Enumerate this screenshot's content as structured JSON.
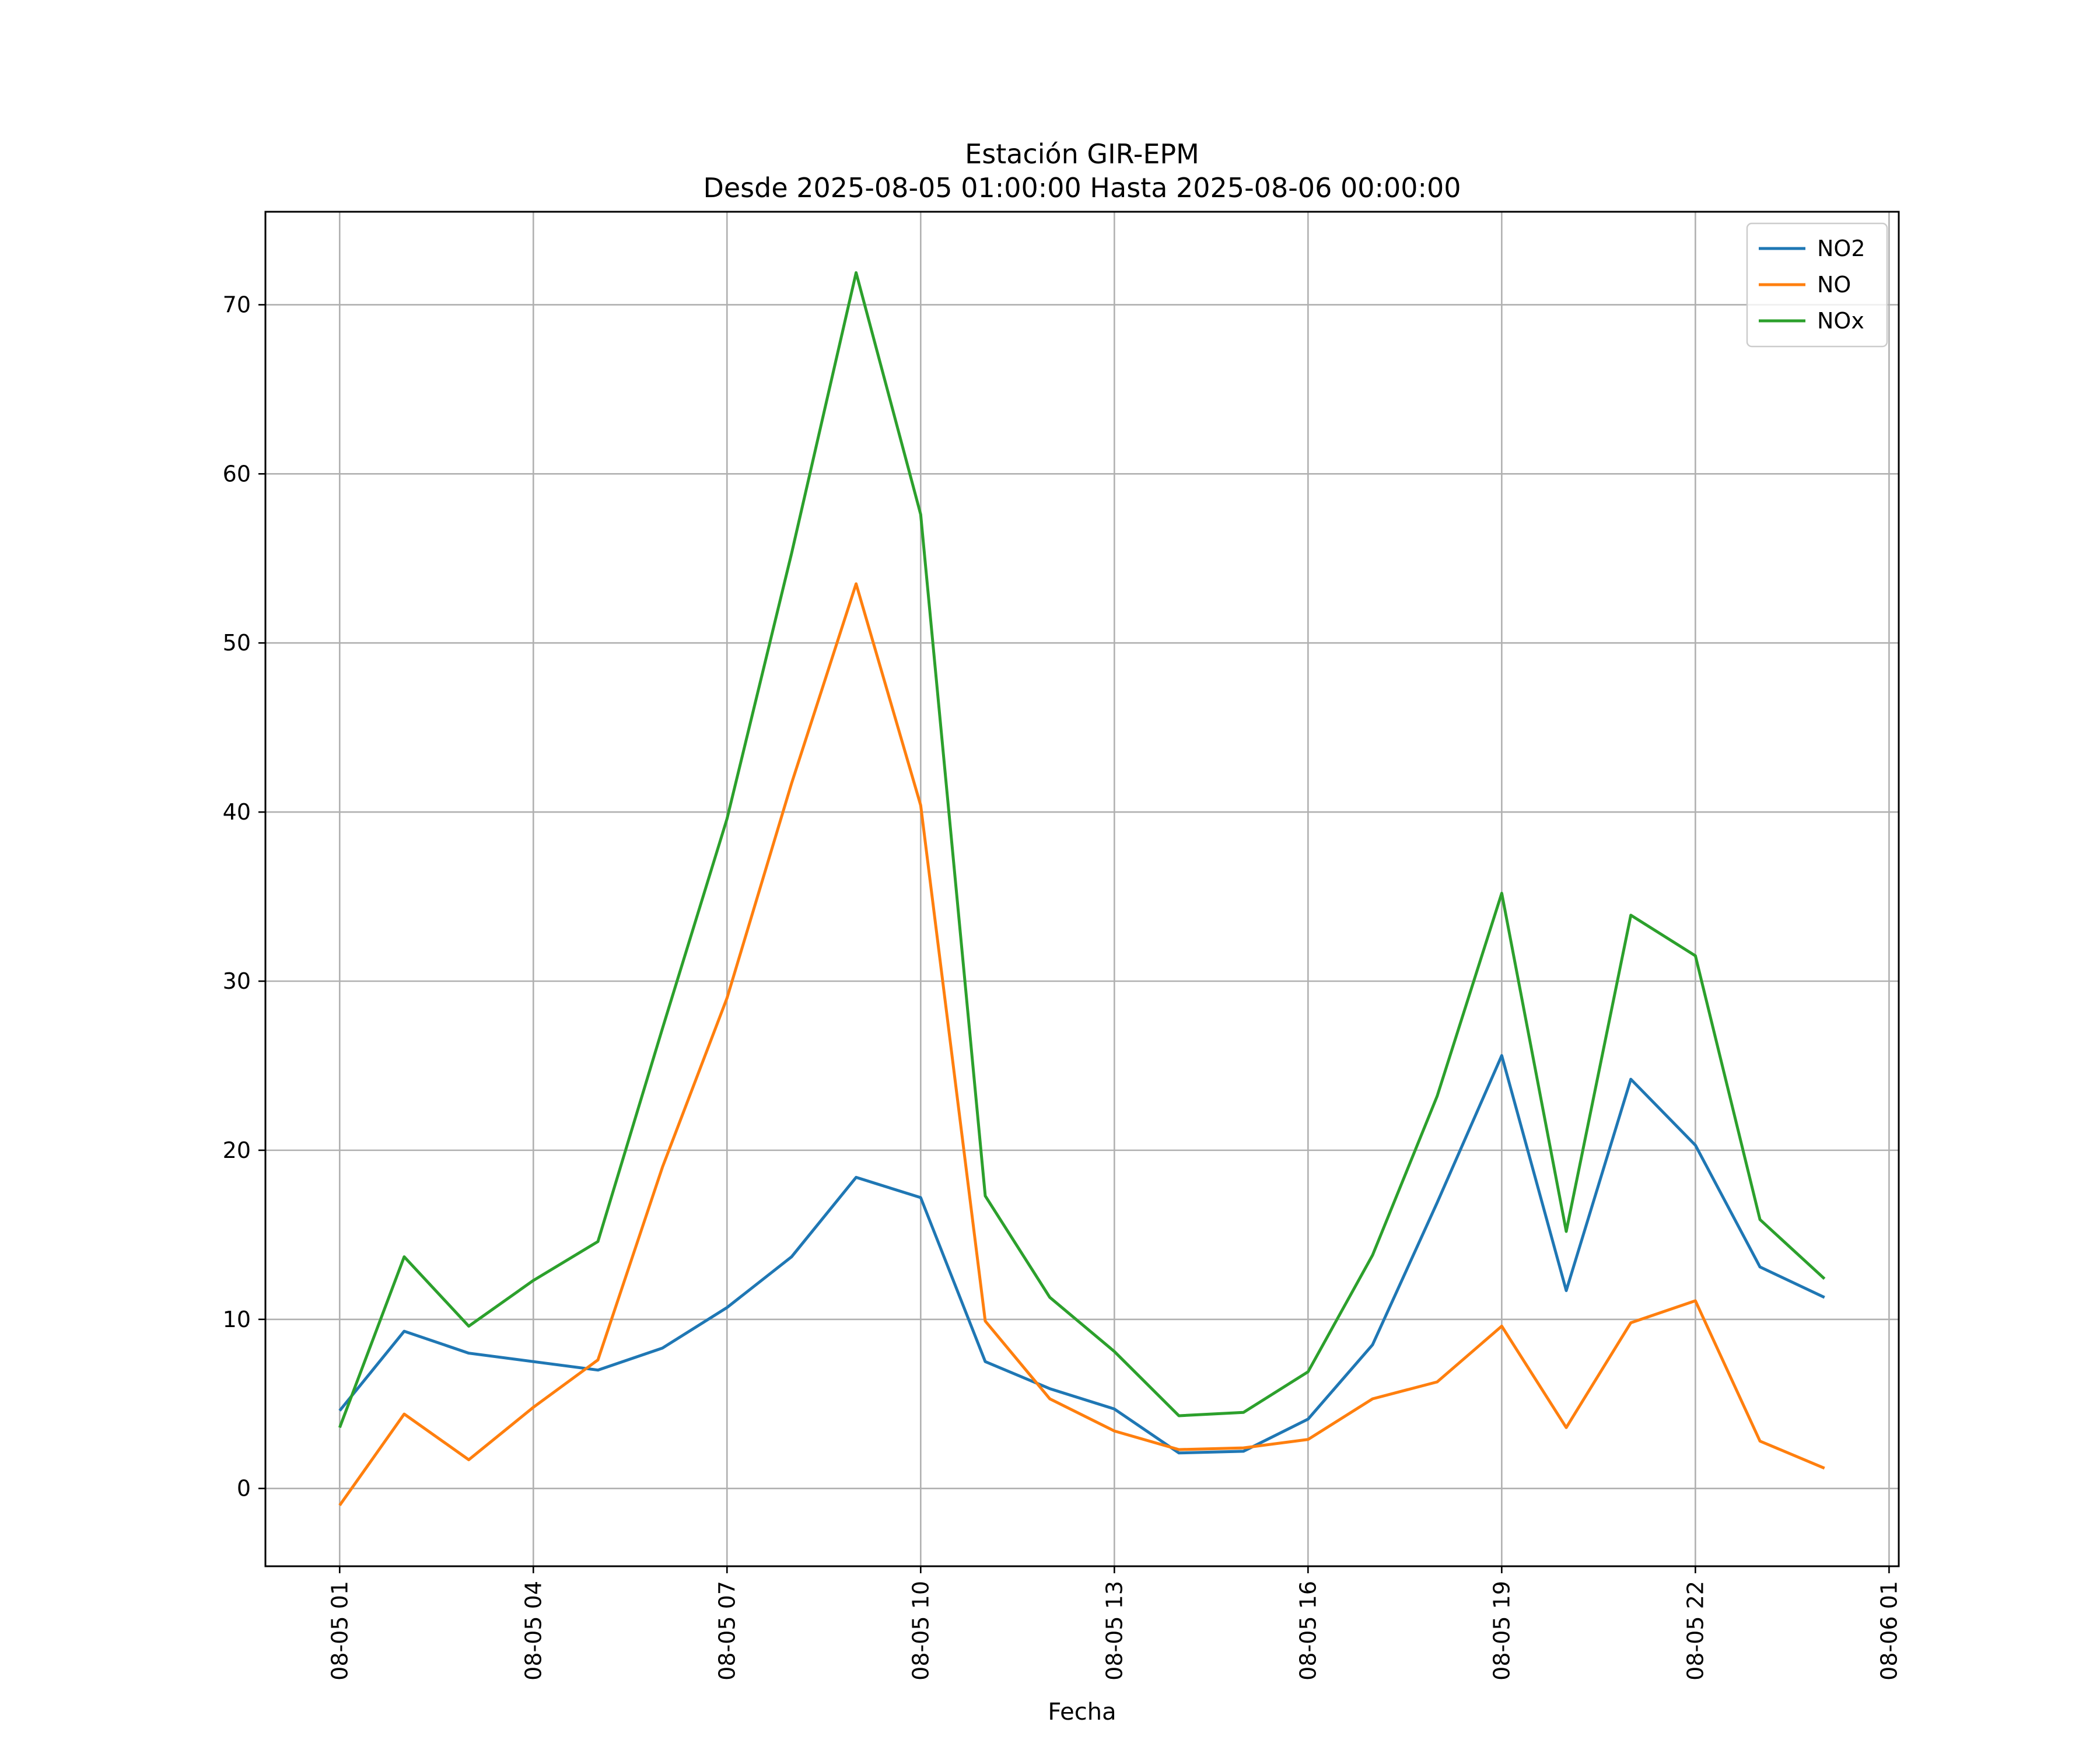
{
  "chart_data": {
    "type": "line",
    "title": "Estación GIR-EPM",
    "subtitle": "Desde 2025-08-05 01:00:00 Hasta 2025-08-06 00:00:00",
    "xlabel": "Fecha",
    "ylabel": "",
    "x": [
      "2025-08-05 01:00",
      "2025-08-05 02:00",
      "2025-08-05 03:00",
      "2025-08-05 04:00",
      "2025-08-05 05:00",
      "2025-08-05 06:00",
      "2025-08-05 07:00",
      "2025-08-05 08:00",
      "2025-08-05 09:00",
      "2025-08-05 10:00",
      "2025-08-05 11:00",
      "2025-08-05 12:00",
      "2025-08-05 13:00",
      "2025-08-05 14:00",
      "2025-08-05 15:00",
      "2025-08-05 16:00",
      "2025-08-05 17:00",
      "2025-08-05 18:00",
      "2025-08-05 19:00",
      "2025-08-05 20:00",
      "2025-08-05 21:00",
      "2025-08-05 22:00",
      "2025-08-05 23:00",
      "2025-08-06 00:00"
    ],
    "series": [
      {
        "name": "NO2",
        "color": "#1f77b4",
        "values": [
          4.6,
          9.3,
          8.0,
          7.5,
          7.0,
          8.3,
          10.7,
          13.7,
          18.4,
          17.2,
          7.5,
          5.9,
          4.7,
          2.1,
          2.2,
          4.1,
          8.5,
          16.9,
          25.6,
          11.7,
          24.2,
          20.3,
          13.1,
          11.3
        ]
      },
      {
        "name": "NO",
        "color": "#ff7f0e",
        "values": [
          -1.0,
          4.4,
          1.7,
          4.8,
          7.6,
          19.0,
          29.0,
          41.7,
          53.5,
          40.4,
          9.9,
          5.3,
          3.4,
          2.3,
          2.4,
          2.9,
          5.3,
          6.3,
          9.6,
          3.6,
          9.8,
          11.1,
          2.8,
          1.2
        ]
      },
      {
        "name": "NOx",
        "color": "#2ca02c",
        "values": [
          3.6,
          13.7,
          9.6,
          12.3,
          14.6,
          27.2,
          39.6,
          55.3,
          71.9,
          57.6,
          17.3,
          11.3,
          8.1,
          4.3,
          4.5,
          6.9,
          13.8,
          23.2,
          35.2,
          15.2,
          33.9,
          31.5,
          15.9,
          12.4
        ]
      }
    ],
    "xticks": [
      "08-05 01",
      "08-05 04",
      "08-05 07",
      "08-05 10",
      "08-05 13",
      "08-05 16",
      "08-05 19",
      "08-05 22",
      "08-06 01"
    ],
    "yticks": [
      "0",
      "10",
      "20",
      "30",
      "40",
      "50",
      "60",
      "70"
    ],
    "xlim": [
      "2025-08-04 23:51",
      "2025-08-06 01:09"
    ],
    "ylim": [
      -4.6,
      75.5
    ],
    "grid": true,
    "legend_position": "upper right"
  }
}
